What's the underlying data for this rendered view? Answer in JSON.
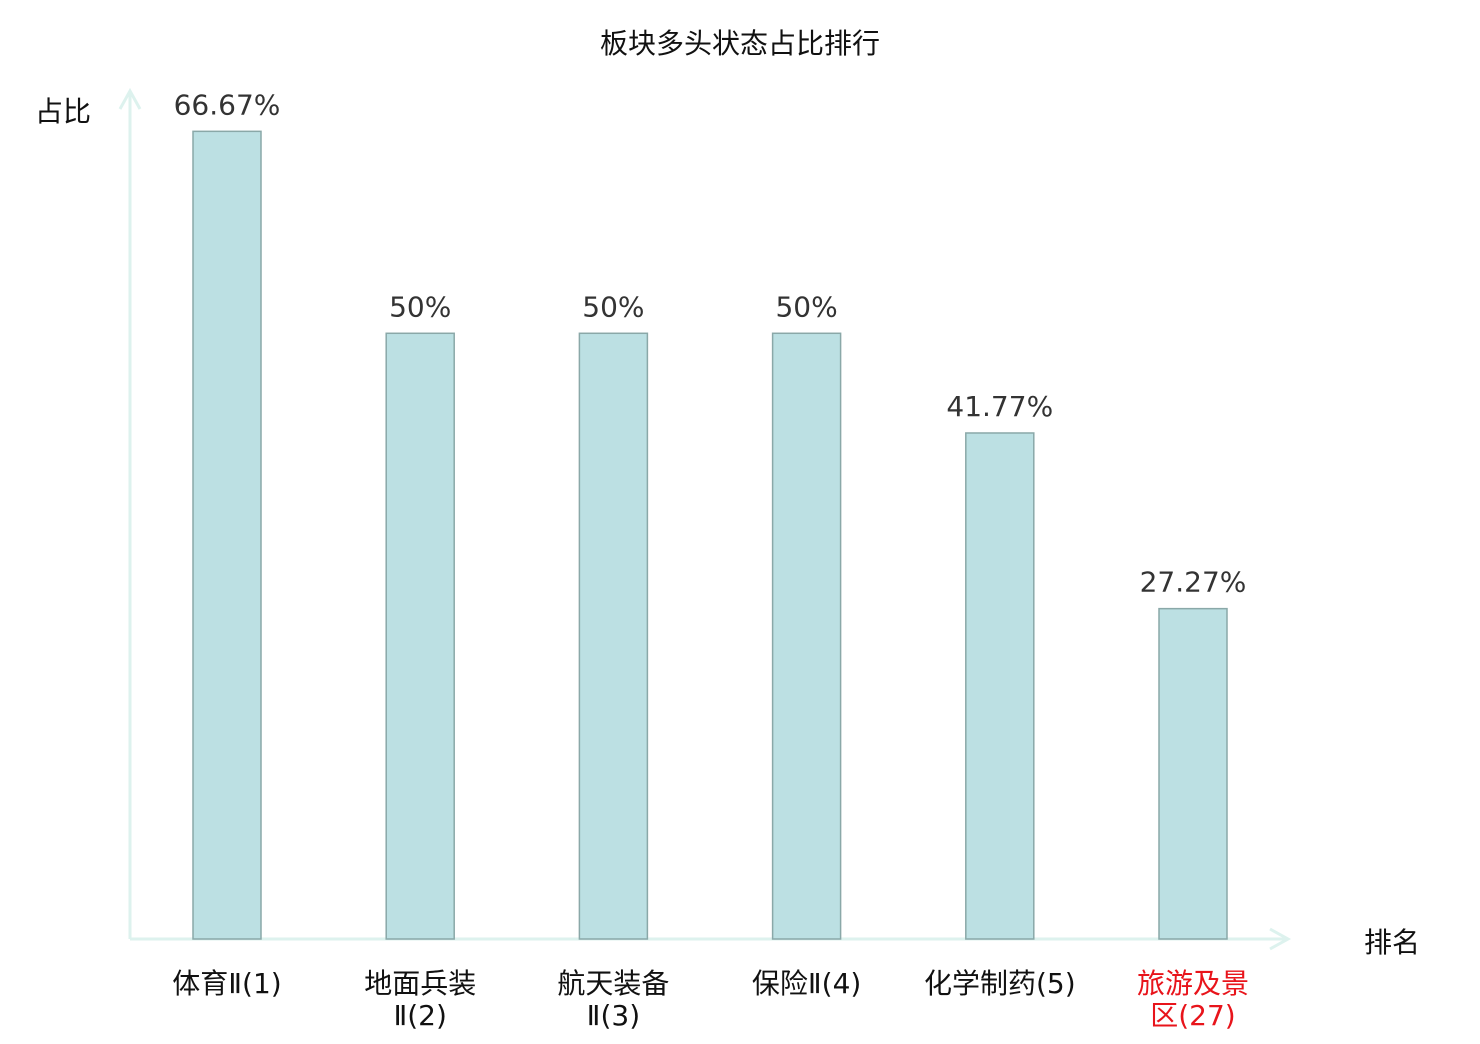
{
  "chart_data": {
    "type": "bar",
    "title": "板块多头状态占比排行",
    "xlabel": "排名",
    "ylabel": "占比",
    "ylim": [
      0,
      70
    ],
    "grid": false,
    "categories": [
      {
        "lines": [
          "体育Ⅱ(1)"
        ],
        "highlight": false
      },
      {
        "lines": [
          "地面兵装",
          "Ⅱ(2)"
        ],
        "highlight": false
      },
      {
        "lines": [
          "航天装备",
          "Ⅱ(3)"
        ],
        "highlight": false
      },
      {
        "lines": [
          "保险Ⅱ(4)"
        ],
        "highlight": false
      },
      {
        "lines": [
          "化学制药(5)"
        ],
        "highlight": false
      },
      {
        "lines": [
          "旅游及景",
          "区(27)"
        ],
        "highlight": true
      }
    ],
    "values": [
      66.67,
      50,
      50,
      50,
      41.77,
      27.27
    ],
    "value_labels": [
      "66.67%",
      "50%",
      "50%",
      "50%",
      "41.77%",
      "27.27%"
    ],
    "colors": {
      "bar_fill": "#bce0e3",
      "bar_stroke": "#8aa8a8",
      "axis": "#ddf2ee",
      "highlight": "#e8141b",
      "text": "#111111",
      "value_text": "#333333"
    }
  }
}
